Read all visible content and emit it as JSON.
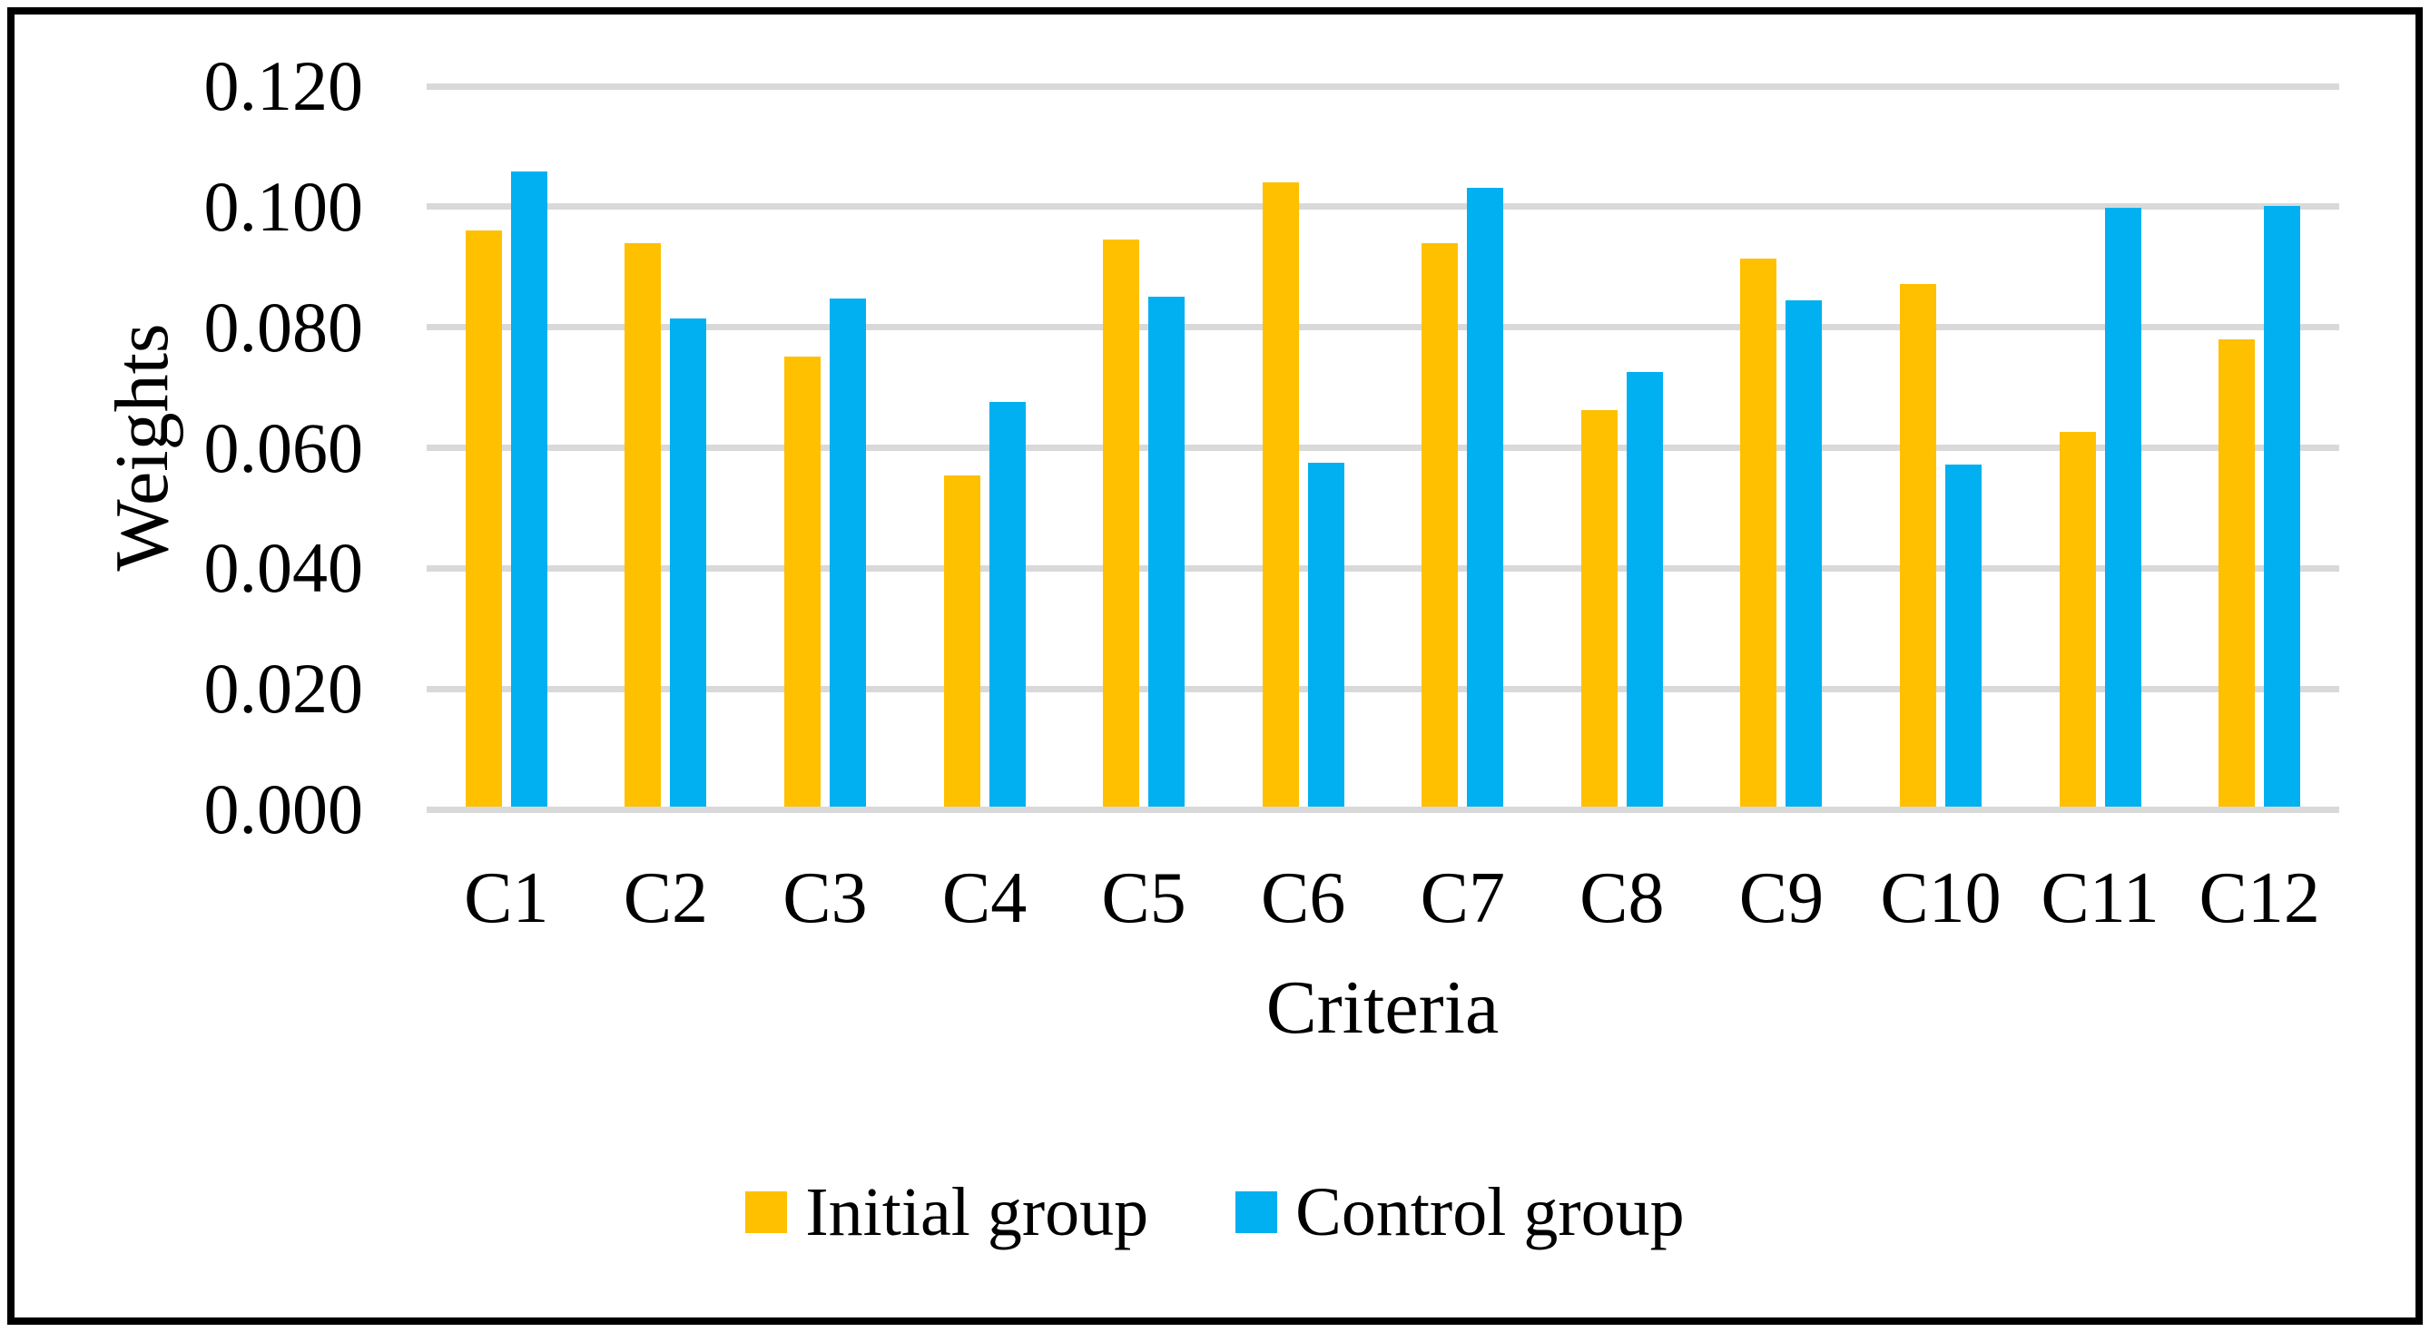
{
  "chart_data": {
    "type": "bar",
    "title": "",
    "categories": [
      "C1",
      "C2",
      "C3",
      "C4",
      "C5",
      "C6",
      "C7",
      "C8",
      "C9",
      "C10",
      "C11",
      "C12"
    ],
    "series": [
      {
        "name": "Initial group",
        "color": "#FFC000",
        "values": [
          0.0961,
          0.094,
          0.0752,
          0.0554,
          0.0945,
          0.1041,
          0.094,
          0.0662,
          0.0914,
          0.0872,
          0.0627,
          0.078
        ]
      },
      {
        "name": "Control group",
        "color": "#00B0F0",
        "values": [
          0.1059,
          0.0814,
          0.0847,
          0.0676,
          0.0851,
          0.0575,
          0.1032,
          0.0725,
          0.0845,
          0.0572,
          0.0998,
          0.1001
        ]
      }
    ],
    "xlabel": "Criteria",
    "ylabel": "Weights",
    "ylim": [
      0,
      0.12
    ],
    "ytick_step": 0.02,
    "ytick_labels": [
      "0.120",
      "0.100",
      "0.080",
      "0.060",
      "0.040",
      "0.020",
      "0.000"
    ],
    "grid": true,
    "gridline_color": "#D9D9D9",
    "legend_position": "bottom",
    "frame_color": "#000000",
    "background_color": "#FFFFFF"
  }
}
